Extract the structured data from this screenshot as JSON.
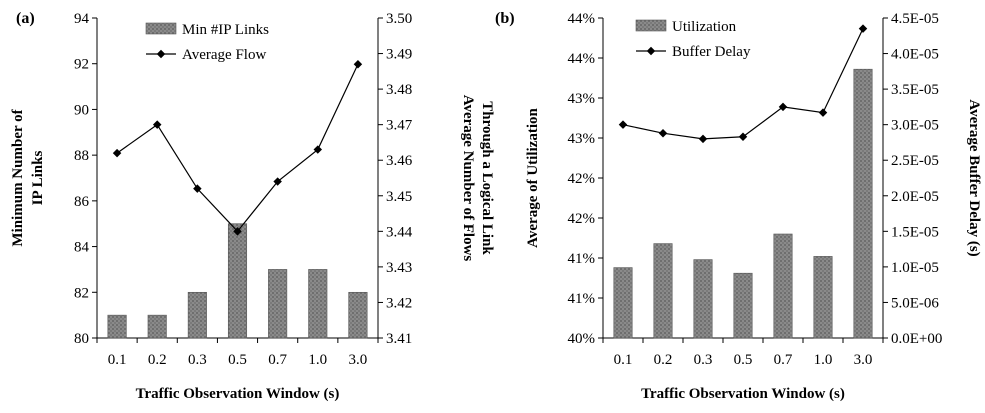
{
  "chart_data": [
    {
      "type": "bar",
      "panel_label": "(a)",
      "categories": [
        "0.1",
        "0.2",
        "0.3",
        "0.5",
        "0.7",
        "1.0",
        "3.0"
      ],
      "xlabel": "Traffic Observation Window (s)",
      "series": [
        {
          "name": "Min #IP Links",
          "kind": "bar",
          "axis": "left",
          "values": [
            81,
            81,
            82,
            85,
            83,
            83,
            82
          ]
        },
        {
          "name": "Average Flow",
          "kind": "line",
          "axis": "right",
          "values": [
            3.462,
            3.47,
            3.452,
            3.44,
            3.454,
            3.463,
            3.487
          ]
        }
      ],
      "ylabel_left": [
        "Minimum Number of",
        "IP Links"
      ],
      "ylim_left": [
        80,
        94
      ],
      "yticks_left": [
        "80",
        "82",
        "84",
        "86",
        "88",
        "90",
        "92",
        "94"
      ],
      "ylabel_right": [
        "Average Number of Flows",
        "Through a Logical Link"
      ],
      "ylim_right": [
        3.41,
        3.5
      ],
      "yticks_right": [
        "3.41",
        "3.42",
        "3.43",
        "3.44",
        "3.45",
        "3.46",
        "3.47",
        "3.48",
        "3.49",
        "3.50"
      ],
      "legend_position": "top-center"
    },
    {
      "type": "bar",
      "panel_label": "(b)",
      "categories": [
        "0.1",
        "0.2",
        "0.3",
        "0.5",
        "0.7",
        "1.0",
        "3.0"
      ],
      "xlabel": "Traffic Observation Window (s)",
      "series": [
        {
          "name": "Utilization",
          "kind": "bar",
          "axis": "left",
          "values": [
            40.88,
            41.18,
            40.98,
            40.81,
            41.3,
            41.02,
            43.36
          ]
        },
        {
          "name": "Buffer Delay",
          "kind": "line",
          "axis": "right",
          "values": [
            3e-05,
            2.88e-05,
            2.8e-05,
            2.83e-05,
            3.25e-05,
            3.17e-05,
            4.35e-05
          ]
        }
      ],
      "ylabel_left": [
        "Average of Utilization"
      ],
      "ylim_left": [
        40,
        44
      ],
      "yticks_left": [
        "40%",
        "41%",
        "41%",
        "42%",
        "42%",
        "43%",
        "43%",
        "44%",
        "44%"
      ],
      "ylabel_right": [
        "Average Buffer Delay (s)"
      ],
      "ylim_right": [
        0,
        4.5e-05
      ],
      "yticks_right": [
        "0.0E+00",
        "5.0E-06",
        "1.0E-05",
        "1.5E-05",
        "2.0E-05",
        "2.5E-05",
        "3.0E-05",
        "3.5E-05",
        "4.0E-05",
        "4.5E-05"
      ],
      "legend_position": "top-left"
    }
  ]
}
